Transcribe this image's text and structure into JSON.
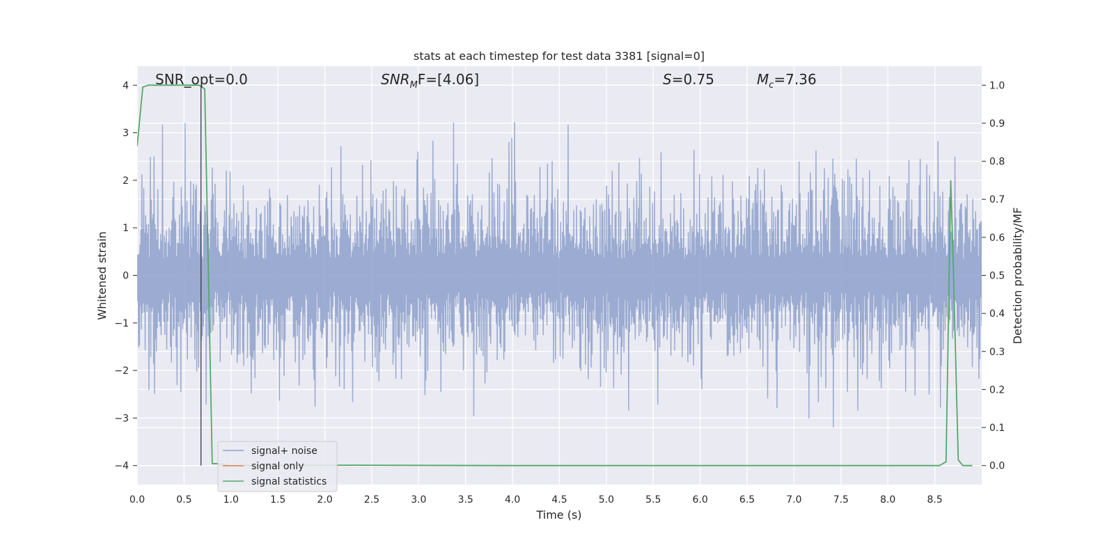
{
  "chart_data": {
    "type": "line",
    "title": "stats at each timestep for test data 3381 [signal=0]",
    "xlabel": "Time (s)",
    "ylabel": "Whitened strain",
    "y2label": "Detection probability/MF",
    "xlim": [
      0.0,
      9.0
    ],
    "ylim": [
      -4.4,
      4.4
    ],
    "y2lim": [
      -0.05,
      1.05
    ],
    "grid": true,
    "legend_position": "lower-left",
    "x_ticks": [
      "0.0",
      "0.5",
      "1.0",
      "1.5",
      "2.0",
      "2.5",
      "3.0",
      "3.5",
      "4.0",
      "4.5",
      "5.0",
      "5.5",
      "6.0",
      "6.5",
      "7.0",
      "7.5",
      "8.0",
      "8.5"
    ],
    "y_ticks": [
      "−4",
      "−3",
      "−2",
      "−1",
      "0",
      "1",
      "2",
      "3",
      "4"
    ],
    "y2_ticks": [
      "0.0",
      "0.1",
      "0.2",
      "0.3",
      "0.4",
      "0.5",
      "0.6",
      "0.7",
      "0.8",
      "0.9",
      "1.0"
    ],
    "annotations": {
      "snr_opt": "SNR_opt=0.0",
      "snr_mf_label": "SNR",
      "snr_mf_sub": "M",
      "snr_mf_rest": "F=[4.06]",
      "s_label": "S",
      "s_value": "=0.75",
      "mc_label": "M",
      "mc_sub": "c",
      "mc_value": "=7.36"
    },
    "marker_line_x": 0.68,
    "series": [
      {
        "name": "signal+ noise",
        "color": "#8da0cb",
        "axis": "left",
        "noise": {
          "t_start": 0.0,
          "t_end": 9.0,
          "typical_amplitude": 1.5,
          "peak_max": 4.0,
          "peak_min": -3.75,
          "samples": 1800
        }
      },
      {
        "name": "signal only",
        "color": "#dd8452",
        "axis": "left",
        "x": [],
        "y": []
      },
      {
        "name": "signal statistics",
        "color": "#55a868",
        "axis": "right",
        "x": [
          0.0,
          0.06,
          0.12,
          0.25,
          0.5,
          0.66,
          0.72,
          0.8,
          0.85,
          1.0,
          2.3,
          4.0,
          6.0,
          8.0,
          8.55,
          8.62,
          8.67,
          8.7,
          8.75,
          8.8,
          8.9
        ],
        "y": [
          0.84,
          0.995,
          1.0,
          1.0,
          1.0,
          1.0,
          0.99,
          0.005,
          0.005,
          0.0,
          0.001,
          0.0,
          0.0,
          0.0,
          0.0,
          0.01,
          0.75,
          0.5,
          0.015,
          0.0,
          0.0
        ]
      }
    ]
  }
}
